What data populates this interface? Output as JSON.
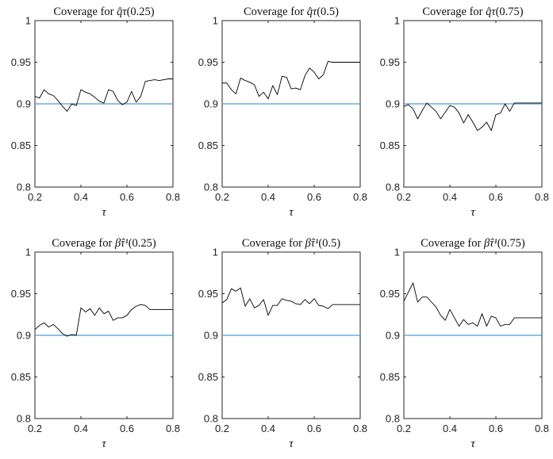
{
  "figure": {
    "background": "#ffffff"
  },
  "colors": {
    "series": "#000000",
    "reference_line": "#4a9fd5",
    "axes": "#262626"
  },
  "chart_data": [
    {
      "type": "line",
      "title_prefix": "Coverage for ",
      "title_symbol": "q̂τ",
      "title_arg": "(0.25)",
      "xlabel": "τ",
      "ylabel": "",
      "xlim": [
        0.2,
        0.8
      ],
      "ylim": [
        0.8,
        1
      ],
      "xticks": [
        "0.2",
        "0.4",
        "0.6",
        "0.8"
      ],
      "yticks": [
        "0.8",
        "0.85",
        "0.9",
        "0.95",
        "1"
      ],
      "grid": false,
      "reference_line": {
        "y": 0.9
      },
      "x": [
        0.2,
        0.22,
        0.24,
        0.26,
        0.28,
        0.3,
        0.32,
        0.34,
        0.36,
        0.38,
        0.4,
        0.42,
        0.44,
        0.46,
        0.48,
        0.5,
        0.52,
        0.54,
        0.56,
        0.58,
        0.6,
        0.62,
        0.64,
        0.66,
        0.68,
        0.7,
        0.72,
        0.74,
        0.76,
        0.78,
        0.8
      ],
      "y": [
        0.909,
        0.907,
        0.917,
        0.912,
        0.91,
        0.904,
        0.897,
        0.891,
        0.9,
        0.898,
        0.917,
        0.914,
        0.912,
        0.908,
        0.903,
        0.901,
        0.917,
        0.915,
        0.904,
        0.899,
        0.902,
        0.915,
        0.902,
        0.909,
        0.927,
        0.928,
        0.929,
        0.928,
        0.929,
        0.93,
        0.93
      ]
    },
    {
      "type": "line",
      "title_prefix": "Coverage for ",
      "title_symbol": "q̂τ",
      "title_arg": "(0.5)",
      "xlabel": "τ",
      "ylabel": "",
      "xlim": [
        0.2,
        0.8
      ],
      "ylim": [
        0.8,
        1
      ],
      "xticks": [
        "0.2",
        "0.4",
        "0.6",
        "0.8"
      ],
      "yticks": [
        "0.8",
        "0.85",
        "0.9",
        "0.95",
        "1"
      ],
      "grid": false,
      "reference_line": {
        "y": 0.9
      },
      "x": [
        0.2,
        0.22,
        0.24,
        0.26,
        0.28,
        0.3,
        0.32,
        0.34,
        0.36,
        0.38,
        0.4,
        0.42,
        0.44,
        0.46,
        0.48,
        0.5,
        0.52,
        0.54,
        0.56,
        0.58,
        0.6,
        0.62,
        0.64,
        0.66,
        0.68,
        0.7,
        0.72,
        0.74,
        0.76,
        0.78,
        0.8
      ],
      "y": [
        0.925,
        0.925,
        0.917,
        0.912,
        0.931,
        0.928,
        0.926,
        0.923,
        0.909,
        0.914,
        0.906,
        0.922,
        0.911,
        0.933,
        0.932,
        0.918,
        0.919,
        0.917,
        0.934,
        0.943,
        0.938,
        0.93,
        0.935,
        0.951,
        0.95,
        0.95,
        0.95,
        0.95,
        0.95,
        0.95,
        0.95
      ]
    },
    {
      "type": "line",
      "title_prefix": "Coverage for ",
      "title_symbol": "q̂τ",
      "title_arg": "(0.75)",
      "xlabel": "τ",
      "ylabel": "",
      "xlim": [
        0.2,
        0.8
      ],
      "ylim": [
        0.8,
        1
      ],
      "xticks": [
        "0.2",
        "0.4",
        "0.6",
        "0.8"
      ],
      "yticks": [
        "0.8",
        "0.85",
        "0.9",
        "0.95",
        "1"
      ],
      "grid": false,
      "reference_line": {
        "y": 0.9
      },
      "x": [
        0.2,
        0.22,
        0.24,
        0.26,
        0.28,
        0.3,
        0.32,
        0.34,
        0.36,
        0.38,
        0.4,
        0.42,
        0.44,
        0.46,
        0.48,
        0.5,
        0.52,
        0.54,
        0.56,
        0.58,
        0.6,
        0.62,
        0.64,
        0.66,
        0.68,
        0.7,
        0.72,
        0.74,
        0.76,
        0.78,
        0.8
      ],
      "y": [
        0.897,
        0.899,
        0.894,
        0.882,
        0.892,
        0.901,
        0.896,
        0.891,
        0.882,
        0.89,
        0.898,
        0.896,
        0.889,
        0.877,
        0.887,
        0.878,
        0.868,
        0.872,
        0.878,
        0.868,
        0.887,
        0.889,
        0.9,
        0.891,
        0.901,
        0.901,
        0.901,
        0.901,
        0.901,
        0.901,
        0.901
      ]
    },
    {
      "type": "line",
      "title_prefix": "Coverage for ",
      "title_symbol": "β̂τ¹",
      "title_arg": "(0.25)",
      "xlabel": "τ",
      "ylabel": "",
      "xlim": [
        0.2,
        0.8
      ],
      "ylim": [
        0.8,
        1
      ],
      "xticks": [
        "0.2",
        "0.4",
        "0.6",
        "0.8"
      ],
      "yticks": [
        "0.8",
        "0.85",
        "0.9",
        "0.95",
        "1"
      ],
      "grid": false,
      "reference_line": {
        "y": 0.9
      },
      "x": [
        0.2,
        0.22,
        0.24,
        0.26,
        0.28,
        0.3,
        0.32,
        0.34,
        0.36,
        0.38,
        0.4,
        0.42,
        0.44,
        0.46,
        0.48,
        0.5,
        0.52,
        0.54,
        0.56,
        0.58,
        0.6,
        0.62,
        0.64,
        0.66,
        0.68,
        0.7,
        0.72,
        0.74,
        0.76,
        0.78,
        0.8
      ],
      "y": [
        0.907,
        0.912,
        0.915,
        0.91,
        0.913,
        0.908,
        0.902,
        0.899,
        0.901,
        0.9,
        0.933,
        0.928,
        0.932,
        0.924,
        0.933,
        0.926,
        0.929,
        0.918,
        0.921,
        0.921,
        0.924,
        0.931,
        0.935,
        0.937,
        0.936,
        0.931,
        0.931,
        0.931,
        0.931,
        0.931,
        0.931
      ]
    },
    {
      "type": "line",
      "title_prefix": "Coverage for ",
      "title_symbol": "β̂τ¹",
      "title_arg": "(0.5)",
      "xlabel": "τ",
      "ylabel": "",
      "xlim": [
        0.2,
        0.8
      ],
      "ylim": [
        0.8,
        1
      ],
      "xticks": [
        "0.2",
        "0.4",
        "0.6",
        "0.8"
      ],
      "yticks": [
        "0.8",
        "0.85",
        "0.9",
        "0.95",
        "1"
      ],
      "grid": false,
      "reference_line": {
        "y": 0.9
      },
      "x": [
        0.2,
        0.22,
        0.24,
        0.26,
        0.28,
        0.3,
        0.32,
        0.34,
        0.36,
        0.38,
        0.4,
        0.42,
        0.44,
        0.46,
        0.48,
        0.5,
        0.52,
        0.54,
        0.56,
        0.58,
        0.6,
        0.62,
        0.64,
        0.66,
        0.68,
        0.7,
        0.72,
        0.74,
        0.76,
        0.78,
        0.8
      ],
      "y": [
        0.939,
        0.943,
        0.956,
        0.953,
        0.957,
        0.935,
        0.944,
        0.933,
        0.936,
        0.943,
        0.924,
        0.936,
        0.936,
        0.944,
        0.942,
        0.941,
        0.938,
        0.937,
        0.943,
        0.938,
        0.944,
        0.936,
        0.935,
        0.932,
        0.937,
        0.937,
        0.937,
        0.937,
        0.937,
        0.937,
        0.937
      ]
    },
    {
      "type": "line",
      "title_prefix": "Coverage for ",
      "title_symbol": "β̂τ¹",
      "title_arg": "(0.75)",
      "xlabel": "τ",
      "ylabel": "",
      "xlim": [
        0.2,
        0.8
      ],
      "ylim": [
        0.8,
        1
      ],
      "xticks": [
        "0.2",
        "0.4",
        "0.6",
        "0.8"
      ],
      "yticks": [
        "0.8",
        "0.85",
        "0.9",
        "0.95",
        "1"
      ],
      "grid": false,
      "reference_line": {
        "y": 0.9
      },
      "x": [
        0.2,
        0.22,
        0.24,
        0.26,
        0.28,
        0.3,
        0.32,
        0.34,
        0.36,
        0.38,
        0.4,
        0.42,
        0.44,
        0.46,
        0.48,
        0.5,
        0.52,
        0.54,
        0.56,
        0.58,
        0.6,
        0.62,
        0.64,
        0.66,
        0.68,
        0.7,
        0.72,
        0.74,
        0.76,
        0.78,
        0.8
      ],
      "y": [
        0.941,
        0.952,
        0.963,
        0.94,
        0.946,
        0.946,
        0.94,
        0.934,
        0.924,
        0.918,
        0.931,
        0.921,
        0.911,
        0.919,
        0.913,
        0.915,
        0.911,
        0.926,
        0.911,
        0.923,
        0.921,
        0.911,
        0.913,
        0.913,
        0.921,
        0.921,
        0.921,
        0.921,
        0.921,
        0.921,
        0.921
      ]
    }
  ]
}
